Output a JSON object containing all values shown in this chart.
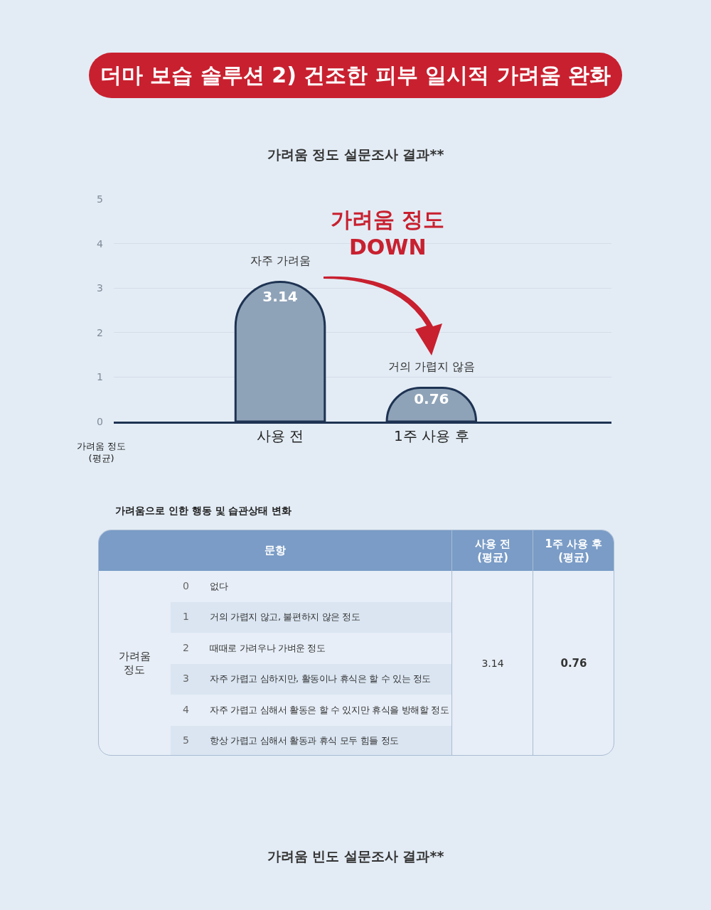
{
  "chart_data": [
    {
      "type": "bar",
      "title": "더마 보습 솔루션 2) 건조한 피부 일시적 가려움 완화",
      "subtitle": "가려움 정도 설문조사 결과**",
      "ylabel": "가려움 정도\n(평균)",
      "categories": [
        "사용 전",
        "1주 사용 후"
      ],
      "values": [
        3.14,
        0.76
      ],
      "color": "#8fa3b8",
      "data_labels": true,
      "ylim": [
        0,
        5
      ],
      "yticks": [
        0,
        1,
        2,
        3,
        4,
        5
      ],
      "grid": "y",
      "legend": false,
      "annotations": [
        {
          "text": "자주 가려움",
          "x": "사용 전",
          "y": 3.14
        },
        {
          "text": "거의 가렵지 않음",
          "x": "1주 사용 후",
          "y": 0.76
        },
        "가려움 정도\nDOWN"
      ]
    },
    {
      "type": "other",
      "title": "가려움으로 인한 행동 및 습관상태 변화",
      "annotations": [
        "문항",
        "사용 전\n(평균)",
        "1주 사용 후\n(평균)",
        "가려움\n정도",
        "0 없다",
        "1 거의 가렵지 않고, 불편하지 않은 정도",
        "2 때때로 가려우나 가벼운 정도",
        "3 자주 가렵고 심하지만, 활동이나 휴식은 할 수 있는 정도",
        "4 자주 가렵고 심해서 활동은 할 수 있지만 휴식을 방해할 정도",
        "5 항상 가렵고 심해서 활동과 휴식 모두 힘들 정도",
        "3.14",
        "0.76"
      ]
    },
    {
      "type": "other",
      "title": "가려움 빈도 설문조사 결과**"
    }
  ]
}
